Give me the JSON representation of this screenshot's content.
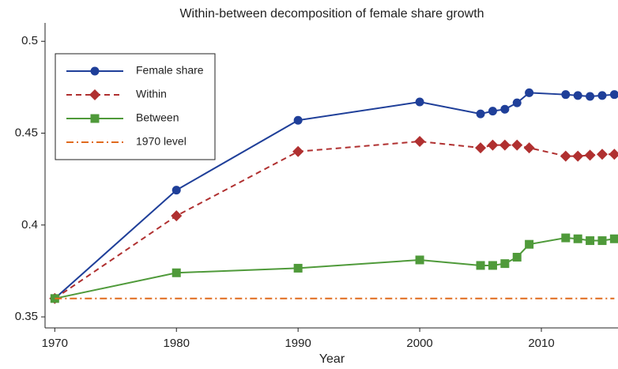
{
  "chart_data": {
    "type": "line",
    "title": "Within-between decomposition of female share growth",
    "x_label": "Year",
    "x": [
      1970,
      1980,
      1990,
      2000,
      2005,
      2006,
      2007,
      2008,
      2009,
      2012,
      2013,
      2014,
      2015,
      2016
    ],
    "series": [
      {
        "name": "Female share",
        "color": "#1f3f99",
        "dash": "solid",
        "marker": "circle",
        "values": [
          0.36,
          0.419,
          0.457,
          0.467,
          0.4605,
          0.462,
          0.463,
          0.4665,
          0.472,
          0.471,
          0.4705,
          0.47,
          0.4705,
          0.471
        ]
      },
      {
        "name": "Within",
        "color": "#b03030",
        "dash": "dashed",
        "marker": "diamond",
        "values": [
          0.36,
          0.405,
          0.44,
          0.4455,
          0.442,
          0.4435,
          0.4435,
          0.4435,
          0.442,
          0.4375,
          0.4375,
          0.438,
          0.4385,
          0.4385
        ]
      },
      {
        "name": "Between",
        "color": "#4f9a3a",
        "dash": "solid",
        "marker": "square",
        "values": [
          0.36,
          0.374,
          0.3765,
          0.381,
          0.378,
          0.378,
          0.379,
          0.3825,
          0.3895,
          0.393,
          0.3925,
          0.3915,
          0.3915,
          0.3925
        ]
      },
      {
        "name": "1970 level",
        "color": "#e06a1c",
        "dash": "dashdot",
        "marker": null,
        "values": [
          0.36,
          0.36,
          0.36,
          0.36,
          0.36,
          0.36,
          0.36,
          0.36,
          0.36,
          0.36,
          0.36,
          0.36,
          0.36,
          0.36
        ]
      }
    ],
    "xlim": [
      1969.2,
      2016.3
    ],
    "xticks": [
      1970,
      1980,
      1990,
      2000,
      2010
    ],
    "ylim": [
      0.344,
      0.51
    ],
    "yticks": [
      0.35,
      0.4,
      0.45,
      0.5
    ],
    "grid": false,
    "legend": "top-left"
  }
}
